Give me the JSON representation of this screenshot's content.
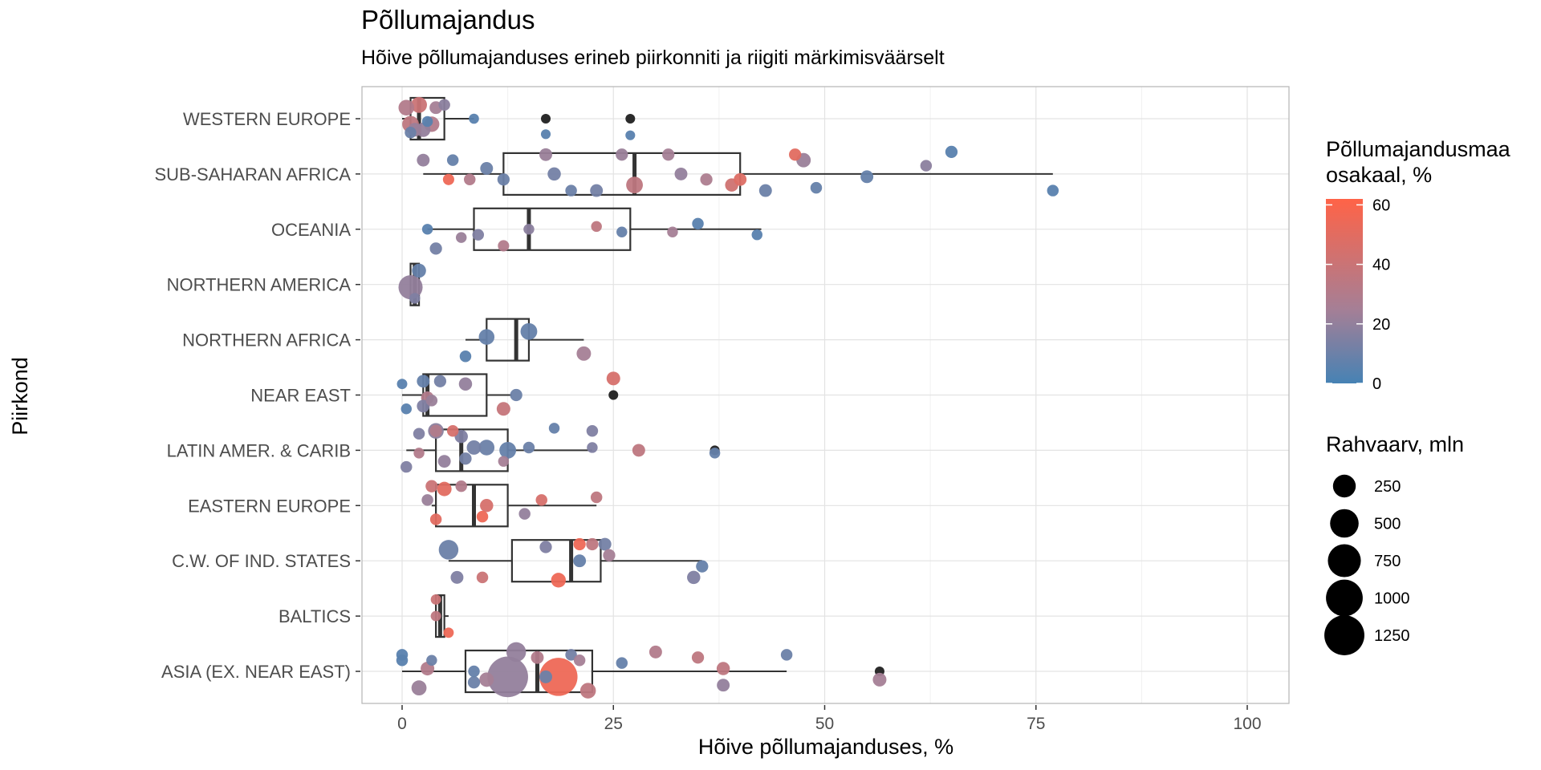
{
  "title": "Põllumajandus",
  "subtitle": "Hõive põllumajanduses erineb piirkonniti ja riigiti märkimisväärselt",
  "legend_color": {
    "title_line1": "Põllumajandusmaa",
    "title_line2": "osakaal, %",
    "ticks": [
      "0",
      "20",
      "40",
      "60"
    ],
    "low_color": "#4682B4",
    "mid_color": "#A57F96",
    "high_color": "#FF6347"
  },
  "legend_size": {
    "title": "Rahvaarv, mln",
    "labels": [
      "250",
      "500",
      "750",
      "1000",
      "1250"
    ]
  },
  "chart_data": {
    "type": "boxplot",
    "title": "Põllumajandus",
    "subtitle": "Hõive põllumajanduses erineb piirkonniti ja riigiti märkimisväärselt",
    "xlabel": "Hõive põllumajanduses, %",
    "ylabel": "Piirkond",
    "xlim": [
      0,
      100
    ],
    "xticks": [
      "0",
      "25",
      "50",
      "75",
      "100"
    ],
    "categories": [
      "WESTERN EUROPE",
      "SUB-SAHARAN AFRICA",
      "OCEANIA",
      "NORTHERN AMERICA",
      "NORTHERN AFRICA",
      "NEAR EAST",
      "LATIN AMER. & CARIB",
      "EASTERN EUROPE",
      "C.W. OF IND. STATES",
      "BALTICS",
      "ASIA (EX. NEAR EAST)"
    ],
    "boxes": [
      {
        "q1": 1.0,
        "median": 2.0,
        "q3": 5.0,
        "whisker_low": 0.0,
        "whisker_high": 8.5
      },
      {
        "q1": 12.0,
        "median": 27.5,
        "q3": 40.0,
        "whisker_low": 2.5,
        "whisker_high": 77.0
      },
      {
        "q1": 8.5,
        "median": 15.0,
        "q3": 27.0,
        "whisker_low": 3.0,
        "whisker_high": 42.5
      },
      {
        "q1": 1.0,
        "median": 1.5,
        "q3": 2.0,
        "whisker_low": 1.0,
        "whisker_high": 2.0
      },
      {
        "q1": 10.0,
        "median": 13.5,
        "q3": 15.0,
        "whisker_low": 7.5,
        "whisker_high": 21.5
      },
      {
        "q1": 2.5,
        "median": 3.0,
        "q3": 10.0,
        "whisker_low": 0.0,
        "whisker_high": 13.0
      },
      {
        "q1": 4.0,
        "median": 7.0,
        "q3": 12.5,
        "whisker_low": 0.5,
        "whisker_high": 22.5
      },
      {
        "q1": 4.0,
        "median": 8.5,
        "q3": 12.5,
        "whisker_low": 3.5,
        "whisker_high": 23.0
      },
      {
        "q1": 13.0,
        "median": 20.0,
        "q3": 23.5,
        "whisker_low": 5.5,
        "whisker_high": 35.5
      },
      {
        "q1": 4.0,
        "median": 4.5,
        "q3": 5.0,
        "whisker_low": 4.0,
        "whisker_high": 5.5
      },
      {
        "q1": 7.5,
        "median": 16.0,
        "q3": 22.5,
        "whisker_low": 0.0,
        "whisker_high": 45.5
      }
    ],
    "outliers": [
      {
        "cat": 0,
        "x": 17.0
      },
      {
        "cat": 0,
        "x": 27.0
      },
      {
        "cat": 5,
        "x": 25.0
      },
      {
        "cat": 6,
        "x": 37.0
      },
      {
        "cat": 10,
        "x": 56.5
      }
    ],
    "points": [
      {
        "cat": 0,
        "x": 0.5,
        "jitter": -0.2,
        "share": 30,
        "pop": 60
      },
      {
        "cat": 0,
        "x": 1.0,
        "jitter": 0.1,
        "share": 35,
        "pop": 80
      },
      {
        "cat": 0,
        "x": 2.0,
        "jitter": -0.25,
        "share": 40,
        "pop": 65
      },
      {
        "cat": 0,
        "x": 2.5,
        "jitter": 0.2,
        "share": 20,
        "pop": 40
      },
      {
        "cat": 0,
        "x": 3.5,
        "jitter": 0.1,
        "share": 30,
        "pop": 55
      },
      {
        "cat": 0,
        "x": 4.0,
        "jitter": -0.2,
        "share": 25,
        "pop": 20
      },
      {
        "cat": 0,
        "x": 5.0,
        "jitter": -0.25,
        "share": 18,
        "pop": 10
      },
      {
        "cat": 0,
        "x": 1.5,
        "jitter": 0.2,
        "share": 22,
        "pop": 30
      },
      {
        "cat": 0,
        "x": 3.0,
        "jitter": 0.05,
        "share": 5,
        "pop": 5
      },
      {
        "cat": 0,
        "x": 8.5,
        "jitter": 0.0,
        "share": 5,
        "pop": 2
      },
      {
        "cat": 0,
        "x": 1.0,
        "jitter": 0.25,
        "share": 10,
        "pop": 10
      },
      {
        "cat": 0,
        "x": 17.0,
        "jitter": 0.28,
        "share": 5,
        "pop": 1
      },
      {
        "cat": 0,
        "x": 27.0,
        "jitter": 0.3,
        "share": 5,
        "pop": 1
      },
      {
        "cat": 1,
        "x": 2.5,
        "jitter": -0.25,
        "share": 20,
        "pop": 20
      },
      {
        "cat": 1,
        "x": 6.0,
        "jitter": -0.25,
        "share": 8,
        "pop": 10
      },
      {
        "cat": 1,
        "x": 12.0,
        "jitter": 0.1,
        "share": 10,
        "pop": 15
      },
      {
        "cat": 1,
        "x": 17.0,
        "jitter": -0.35,
        "share": 22,
        "pop": 20
      },
      {
        "cat": 1,
        "x": 18.0,
        "jitter": 0.0,
        "share": 12,
        "pop": 25
      },
      {
        "cat": 1,
        "x": 26.0,
        "jitter": -0.35,
        "share": 22,
        "pop": 15
      },
      {
        "cat": 1,
        "x": 27.5,
        "jitter": 0.2,
        "share": 35,
        "pop": 80
      },
      {
        "cat": 1,
        "x": 31.5,
        "jitter": -0.35,
        "share": 25,
        "pop": 15
      },
      {
        "cat": 1,
        "x": 33.0,
        "jitter": 0.0,
        "share": 20,
        "pop": 20
      },
      {
        "cat": 1,
        "x": 36.0,
        "jitter": 0.1,
        "share": 28,
        "pop": 15
      },
      {
        "cat": 1,
        "x": 40.0,
        "jitter": 0.1,
        "share": 48,
        "pop": 20
      },
      {
        "cat": 1,
        "x": 39.0,
        "jitter": 0.2,
        "share": 42,
        "pop": 25
      },
      {
        "cat": 1,
        "x": 43.0,
        "jitter": 0.3,
        "share": 10,
        "pop": 20
      },
      {
        "cat": 1,
        "x": 47.5,
        "jitter": -0.25,
        "share": 22,
        "pop": 40
      },
      {
        "cat": 1,
        "x": 46.5,
        "jitter": -0.35,
        "share": 50,
        "pop": 15
      },
      {
        "cat": 1,
        "x": 55.0,
        "jitter": 0.05,
        "share": 8,
        "pop": 20
      },
      {
        "cat": 1,
        "x": 62.0,
        "jitter": -0.15,
        "share": 18,
        "pop": 10
      },
      {
        "cat": 1,
        "x": 65.0,
        "jitter": -0.4,
        "share": 5,
        "pop": 15
      },
      {
        "cat": 1,
        "x": 77.0,
        "jitter": 0.3,
        "share": 5,
        "pop": 10
      },
      {
        "cat": 1,
        "x": 49.0,
        "jitter": 0.25,
        "share": 8,
        "pop": 10
      },
      {
        "cat": 1,
        "x": 20.0,
        "jitter": 0.3,
        "share": 10,
        "pop": 10
      },
      {
        "cat": 1,
        "x": 8.0,
        "jitter": 0.1,
        "share": 30,
        "pop": 10
      },
      {
        "cat": 1,
        "x": 10.0,
        "jitter": -0.1,
        "share": 10,
        "pop": 20
      },
      {
        "cat": 1,
        "x": 23.0,
        "jitter": 0.3,
        "share": 12,
        "pop": 20
      },
      {
        "cat": 1,
        "x": 5.5,
        "jitter": 0.1,
        "share": 55,
        "pop": 8
      },
      {
        "cat": 2,
        "x": 3.0,
        "jitter": 0.0,
        "share": 5,
        "pop": 5
      },
      {
        "cat": 2,
        "x": 4.0,
        "jitter": 0.35,
        "share": 12,
        "pop": 15
      },
      {
        "cat": 2,
        "x": 7.0,
        "jitter": 0.15,
        "share": 22,
        "pop": 5
      },
      {
        "cat": 2,
        "x": 9.0,
        "jitter": 0.1,
        "share": 15,
        "pop": 10
      },
      {
        "cat": 2,
        "x": 12.0,
        "jitter": 0.3,
        "share": 30,
        "pop": 8
      },
      {
        "cat": 2,
        "x": 15.0,
        "jitter": 0.0,
        "share": 18,
        "pop": 5
      },
      {
        "cat": 2,
        "x": 23.0,
        "jitter": -0.05,
        "share": 35,
        "pop": 5
      },
      {
        "cat": 2,
        "x": 26.0,
        "jitter": 0.05,
        "share": 8,
        "pop": 5
      },
      {
        "cat": 2,
        "x": 35.0,
        "jitter": -0.1,
        "share": 5,
        "pop": 10
      },
      {
        "cat": 2,
        "x": 32.0,
        "jitter": 0.05,
        "share": 25,
        "pop": 5
      },
      {
        "cat": 2,
        "x": 42.0,
        "jitter": 0.1,
        "share": 5,
        "pop": 5
      },
      {
        "cat": 3,
        "x": 2.0,
        "jitter": -0.25,
        "share": 8,
        "pop": 35
      },
      {
        "cat": 3,
        "x": 1.0,
        "jitter": 0.05,
        "share": 20,
        "pop": 300
      },
      {
        "cat": 3,
        "x": 1.5,
        "jitter": 0.25,
        "share": 15,
        "pop": 5
      },
      {
        "cat": 4,
        "x": 10.0,
        "jitter": -0.05,
        "share": 8,
        "pop": 60
      },
      {
        "cat": 4,
        "x": 15.0,
        "jitter": -0.15,
        "share": 8,
        "pop": 80
      },
      {
        "cat": 4,
        "x": 21.5,
        "jitter": 0.25,
        "share": 25,
        "pop": 40
      },
      {
        "cat": 4,
        "x": 7.5,
        "jitter": 0.3,
        "share": 5,
        "pop": 10
      },
      {
        "cat": 5,
        "x": 0.0,
        "jitter": -0.2,
        "share": 5,
        "pop": 3
      },
      {
        "cat": 5,
        "x": 2.5,
        "jitter": -0.25,
        "share": 8,
        "pop": 20
      },
      {
        "cat": 5,
        "x": 4.5,
        "jitter": -0.25,
        "share": 12,
        "pop": 15
      },
      {
        "cat": 5,
        "x": 7.5,
        "jitter": -0.2,
        "share": 20,
        "pop": 25
      },
      {
        "cat": 5,
        "x": 3.0,
        "jitter": 0.05,
        "share": 30,
        "pop": 20
      },
      {
        "cat": 5,
        "x": 13.5,
        "jitter": 0.0,
        "share": 10,
        "pop": 15
      },
      {
        "cat": 5,
        "x": 2.5,
        "jitter": 0.2,
        "share": 15,
        "pop": 20
      },
      {
        "cat": 5,
        "x": 0.5,
        "jitter": 0.25,
        "share": 5,
        "pop": 5
      },
      {
        "cat": 5,
        "x": 12.0,
        "jitter": 0.25,
        "share": 38,
        "pop": 30
      },
      {
        "cat": 5,
        "x": 25.0,
        "jitter": -0.3,
        "share": 45,
        "pop": 30
      },
      {
        "cat": 5,
        "x": 3.5,
        "jitter": 0.1,
        "share": 22,
        "pop": 10
      },
      {
        "cat": 6,
        "x": 2.0,
        "jitter": -0.3,
        "share": 15,
        "pop": 10
      },
      {
        "cat": 6,
        "x": 4.0,
        "jitter": -0.35,
        "share": 30,
        "pop": 15
      },
      {
        "cat": 6,
        "x": 6.0,
        "jitter": -0.35,
        "share": 45,
        "pop": 10
      },
      {
        "cat": 6,
        "x": 7.0,
        "jitter": -0.25,
        "share": 15,
        "pop": 25
      },
      {
        "cat": 6,
        "x": 4.0,
        "jitter": -0.35,
        "share": 18,
        "pop": 60
      },
      {
        "cat": 6,
        "x": 8.5,
        "jitter": -0.05,
        "share": 12,
        "pop": 40
      },
      {
        "cat": 6,
        "x": 10.0,
        "jitter": -0.05,
        "share": 10,
        "pop": 60
      },
      {
        "cat": 6,
        "x": 12.5,
        "jitter": 0.0,
        "share": 8,
        "pop": 80
      },
      {
        "cat": 6,
        "x": 15.0,
        "jitter": -0.05,
        "share": 10,
        "pop": 10
      },
      {
        "cat": 6,
        "x": 18.0,
        "jitter": -0.4,
        "share": 8,
        "pop": 5
      },
      {
        "cat": 6,
        "x": 22.5,
        "jitter": -0.35,
        "share": 15,
        "pop": 10
      },
      {
        "cat": 6,
        "x": 22.5,
        "jitter": -0.05,
        "share": 15,
        "pop": 5
      },
      {
        "cat": 6,
        "x": 28.0,
        "jitter": 0.0,
        "share": 35,
        "pop": 20
      },
      {
        "cat": 6,
        "x": 37.0,
        "jitter": 0.05,
        "share": 8,
        "pop": 5
      },
      {
        "cat": 6,
        "x": 5.0,
        "jitter": 0.2,
        "share": 20,
        "pop": 20
      },
      {
        "cat": 6,
        "x": 7.5,
        "jitter": 0.15,
        "share": 12,
        "pop": 15
      },
      {
        "cat": 6,
        "x": 0.5,
        "jitter": 0.3,
        "share": 15,
        "pop": 10
      },
      {
        "cat": 6,
        "x": 12.0,
        "jitter": 0.2,
        "share": 25,
        "pop": 5
      },
      {
        "cat": 6,
        "x": 2.0,
        "jitter": 0.05,
        "share": 30,
        "pop": 5
      },
      {
        "cat": 7,
        "x": 3.5,
        "jitter": -0.35,
        "share": 40,
        "pop": 15
      },
      {
        "cat": 7,
        "x": 5.0,
        "jitter": -0.3,
        "share": 50,
        "pop": 40
      },
      {
        "cat": 7,
        "x": 7.0,
        "jitter": -0.35,
        "share": 30,
        "pop": 10
      },
      {
        "cat": 7,
        "x": 3.0,
        "jitter": -0.1,
        "share": 22,
        "pop": 10
      },
      {
        "cat": 7,
        "x": 10.0,
        "jitter": 0.0,
        "share": 45,
        "pop": 25
      },
      {
        "cat": 7,
        "x": 16.5,
        "jitter": -0.1,
        "share": 45,
        "pop": 10
      },
      {
        "cat": 7,
        "x": 23.0,
        "jitter": -0.15,
        "share": 35,
        "pop": 10
      },
      {
        "cat": 7,
        "x": 14.5,
        "jitter": 0.15,
        "share": 20,
        "pop": 10
      },
      {
        "cat": 7,
        "x": 9.5,
        "jitter": 0.2,
        "share": 55,
        "pop": 10
      },
      {
        "cat": 7,
        "x": 4.0,
        "jitter": 0.25,
        "share": 50,
        "pop": 10
      },
      {
        "cat": 8,
        "x": 5.5,
        "jitter": -0.2,
        "share": 10,
        "pop": 150
      },
      {
        "cat": 8,
        "x": 17.0,
        "jitter": -0.25,
        "share": 15,
        "pop": 15
      },
      {
        "cat": 8,
        "x": 21.0,
        "jitter": -0.3,
        "share": 55,
        "pop": 15
      },
      {
        "cat": 8,
        "x": 22.5,
        "jitter": -0.3,
        "share": 35,
        "pop": 15
      },
      {
        "cat": 8,
        "x": 24.0,
        "jitter": -0.3,
        "share": 12,
        "pop": 20
      },
      {
        "cat": 8,
        "x": 24.5,
        "jitter": -0.1,
        "share": 25,
        "pop": 15
      },
      {
        "cat": 8,
        "x": 21.0,
        "jitter": 0.0,
        "share": 8,
        "pop": 20
      },
      {
        "cat": 8,
        "x": 35.5,
        "jitter": 0.1,
        "share": 8,
        "pop": 15
      },
      {
        "cat": 8,
        "x": 34.5,
        "jitter": 0.3,
        "share": 15,
        "pop": 25
      },
      {
        "cat": 8,
        "x": 6.5,
        "jitter": 0.3,
        "share": 15,
        "pop": 20
      },
      {
        "cat": 8,
        "x": 9.5,
        "jitter": 0.3,
        "share": 40,
        "pop": 10
      },
      {
        "cat": 8,
        "x": 18.5,
        "jitter": 0.35,
        "share": 55,
        "pop": 45
      },
      {
        "cat": 9,
        "x": 4.0,
        "jitter": -0.3,
        "share": 40,
        "pop": 3
      },
      {
        "cat": 9,
        "x": 4.0,
        "jitter": 0.0,
        "share": 35,
        "pop": 3
      },
      {
        "cat": 9,
        "x": 5.5,
        "jitter": 0.3,
        "share": 55,
        "pop": 3
      },
      {
        "cat": 10,
        "x": 0.0,
        "jitter": -0.3,
        "share": 5,
        "pop": 10
      },
      {
        "cat": 10,
        "x": 0.0,
        "jitter": -0.2,
        "share": 5,
        "pop": 10
      },
      {
        "cat": 10,
        "x": 3.5,
        "jitter": -0.2,
        "share": 10,
        "pop": 5
      },
      {
        "cat": 10,
        "x": 3.0,
        "jitter": -0.05,
        "share": 30,
        "pop": 30
      },
      {
        "cat": 10,
        "x": 13.5,
        "jitter": -0.35,
        "share": 20,
        "pop": 150
      },
      {
        "cat": 10,
        "x": 16.0,
        "jitter": -0.25,
        "share": 30,
        "pop": 20
      },
      {
        "cat": 10,
        "x": 20.0,
        "jitter": -0.3,
        "share": 12,
        "pop": 10
      },
      {
        "cat": 10,
        "x": 21.0,
        "jitter": -0.2,
        "share": 25,
        "pop": 10
      },
      {
        "cat": 10,
        "x": 26.0,
        "jitter": -0.15,
        "share": 8,
        "pop": 10
      },
      {
        "cat": 10,
        "x": 30.0,
        "jitter": -0.35,
        "share": 30,
        "pop": 20
      },
      {
        "cat": 10,
        "x": 35.0,
        "jitter": -0.25,
        "share": 35,
        "pop": 15
      },
      {
        "cat": 10,
        "x": 38.0,
        "jitter": -0.05,
        "share": 35,
        "pop": 25
      },
      {
        "cat": 10,
        "x": 45.5,
        "jitter": -0.3,
        "share": 10,
        "pop": 10
      },
      {
        "cat": 10,
        "x": 12.5,
        "jitter": 0.1,
        "share": 20,
        "pop": 1300
      },
      {
        "cat": 10,
        "x": 18.5,
        "jitter": 0.1,
        "share": 55,
        "pop": 1100
      },
      {
        "cat": 10,
        "x": 17.0,
        "jitter": 0.1,
        "share": 10,
        "pop": 20
      },
      {
        "cat": 10,
        "x": 10.0,
        "jitter": 0.15,
        "share": 25,
        "pop": 40
      },
      {
        "cat": 10,
        "x": 8.5,
        "jitter": 0.0,
        "share": 8,
        "pop": 10
      },
      {
        "cat": 10,
        "x": 8.5,
        "jitter": 0.2,
        "share": 10,
        "pop": 15
      },
      {
        "cat": 10,
        "x": 22.0,
        "jitter": 0.35,
        "share": 35,
        "pop": 60
      },
      {
        "cat": 10,
        "x": 2.0,
        "jitter": 0.3,
        "share": 22,
        "pop": 50
      },
      {
        "cat": 10,
        "x": 38.0,
        "jitter": 0.25,
        "share": 20,
        "pop": 20
      },
      {
        "cat": 10,
        "x": 56.5,
        "jitter": 0.15,
        "share": 25,
        "pop": 30
      }
    ]
  }
}
